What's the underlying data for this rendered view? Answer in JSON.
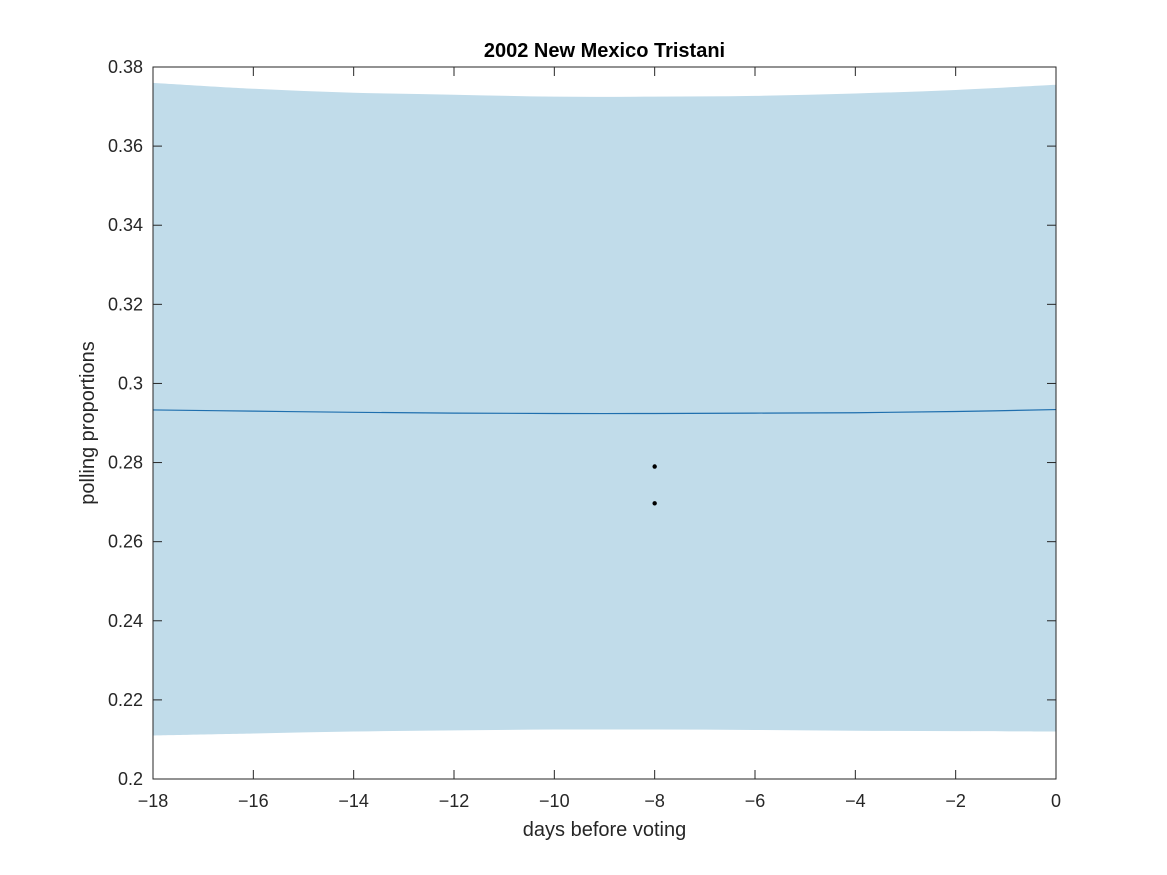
{
  "chart_data": {
    "type": "area",
    "title": "2002 New Mexico Tristani",
    "xlabel": "days before voting",
    "ylabel": "polling proportions",
    "xlim": [
      -18,
      0
    ],
    "ylim": [
      0.2,
      0.38
    ],
    "xticks": [
      -18,
      -16,
      -14,
      -12,
      -10,
      -8,
      -6,
      -4,
      -2,
      0
    ],
    "yticks": [
      0.2,
      0.22,
      0.24,
      0.26,
      0.28,
      0.3,
      0.32,
      0.34,
      0.36,
      0.38
    ],
    "grid": false,
    "legend": "none",
    "band": {
      "x": [
        -18,
        -16,
        -14,
        -12,
        -10,
        -8,
        -6,
        -4,
        -2,
        0
      ],
      "upper": [
        0.376,
        0.3745,
        0.3735,
        0.373,
        0.3725,
        0.3725,
        0.3727,
        0.3733,
        0.3742,
        0.3755
      ],
      "lower": [
        0.211,
        0.2115,
        0.212,
        0.2123,
        0.2125,
        0.2125,
        0.2124,
        0.2122,
        0.2121,
        0.212
      ]
    },
    "series": [
      {
        "type": "line",
        "x": [
          -18,
          -16,
          -14,
          -12,
          -10,
          -8,
          -6,
          -4,
          -2,
          0
        ],
        "y": [
          0.2933,
          0.293,
          0.2927,
          0.2925,
          0.2924,
          0.2924,
          0.2925,
          0.2926,
          0.2929,
          0.2934
        ]
      },
      {
        "type": "scatter",
        "x": [
          -8,
          -8
        ],
        "y": [
          0.279,
          0.2697
        ]
      }
    ],
    "colors": {
      "band": "#c1dcea",
      "line": "#1f6fae",
      "points": "#000000",
      "axes": "#262626"
    }
  }
}
